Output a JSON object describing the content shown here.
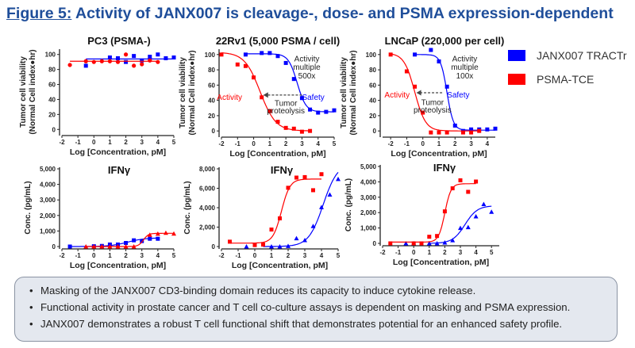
{
  "title": {
    "prefix": "Figure 5:",
    "text": " Activity of JANX007 is cleavage-, dose- and PSMA expression-dependent"
  },
  "legend": [
    {
      "label": "JANX007 TRACTr",
      "color": "#0000ff"
    },
    {
      "label": "PSMA-TCE",
      "color": "#ff0000"
    }
  ],
  "bullets": [
    "Masking of the JANX007 CD3-binding domain reduces its capacity to induce cytokine release.",
    "Functional activity in prostate cancer and T cell co-culture assays is dependent on masking and PSMA expression.",
    "JANX007 demonstrates a robust T cell functional shift that demonstrates potential for an enhanced safety profile."
  ],
  "chart_data": [
    {
      "type": "scatter",
      "title": "PC3 (PSMA-)",
      "xlabel": "Log [Concentration, pM]",
      "ylabel": [
        "Tumor cell viability",
        "(Normal Cell index●hr)"
      ],
      "xlim": [
        -2,
        5
      ],
      "ylim": [
        -5,
        105
      ],
      "xticks": [
        -2,
        -1,
        0,
        1,
        2,
        3,
        4,
        5
      ],
      "yticks": [
        0,
        20,
        40,
        60,
        80,
        100
      ],
      "ytick_labels": [
        "0",
        "20",
        "40",
        "60",
        "80",
        "100"
      ],
      "series": [
        {
          "name": "JANX007 TRACTr",
          "color": "#0000ff",
          "marker": "square",
          "x": [
            -0.5,
            1,
            1.5,
            2,
            2.5,
            3,
            3.5,
            4,
            4.5,
            5
          ],
          "y": [
            85,
            96,
            95,
            90,
            98,
            92,
            97,
            100,
            95,
            96
          ],
          "fit": {
            "type": "flat",
            "value": 94,
            "range": [
              -0.5,
              5
            ]
          }
        },
        {
          "name": "PSMA-TCE",
          "color": "#ff0000",
          "marker": "circle",
          "x": [
            -1.5,
            -0.5,
            0,
            0.5,
            1,
            1.5,
            2,
            2.5,
            3,
            3.5,
            4
          ],
          "y": [
            86,
            91,
            90,
            91,
            91,
            90,
            100,
            85,
            87,
            92,
            90
          ],
          "fit": {
            "type": "flat",
            "value": 91,
            "range": [
              -1.5,
              4
            ]
          }
        }
      ],
      "annotations": []
    },
    {
      "type": "scatter",
      "title": "22Rv1 (5,000 PSMA / cell)",
      "xlabel": "Log [Concentration, pM]",
      "ylabel": [
        "Tumor cell viability",
        "(Normal Cell index●hr)"
      ],
      "xlim": [
        -2,
        5
      ],
      "ylim": [
        -5,
        105
      ],
      "xticks": [
        -2,
        -1,
        0,
        1,
        2,
        3,
        4,
        5
      ],
      "yticks": [
        0,
        20,
        40,
        60,
        80,
        100
      ],
      "ytick_labels": [
        "0",
        "20",
        "40",
        "60",
        "80",
        "100"
      ],
      "series": [
        {
          "name": "JANX007 TRACTr",
          "color": "#0000ff",
          "marker": "square",
          "x": [
            -0.5,
            0.5,
            1,
            1.5,
            2,
            2.5,
            3,
            3.5,
            4,
            4.5,
            5
          ],
          "y": [
            100,
            102,
            102,
            98,
            89,
            68,
            43,
            28,
            24,
            25,
            27
          ],
          "fit": {
            "type": "sigmoid",
            "bottom": 25,
            "top": 101,
            "ec50": 2.7,
            "hill": 1.6,
            "range": [
              -0.5,
              5
            ]
          }
        },
        {
          "name": "PSMA-TCE",
          "color": "#ff0000",
          "marker": "square",
          "x": [
            -2,
            -1,
            -0.5,
            0,
            0.5,
            1,
            1.5,
            2,
            2.5,
            3,
            3.5
          ],
          "y": [
            100,
            87,
            85,
            70,
            44,
            26,
            12,
            4,
            3,
            -1,
            0
          ],
          "fit": {
            "type": "sigmoid",
            "bottom": 0,
            "top": 103,
            "ec50": 0.4,
            "hill": 0.9,
            "range": [
              -2,
              3.5
            ]
          }
        }
      ],
      "annotations": [
        {
          "text": "Activity",
          "color": "#ff0000",
          "x": -1.5,
          "y": 44
        },
        {
          "text": "Activity",
          "color": "#222",
          "x": 3.3,
          "y": 94
        },
        {
          "text": "multiple",
          "color": "#222",
          "x": 3.3,
          "y": 83
        },
        {
          "text": "500x",
          "color": "#222",
          "x": 3.3,
          "y": 72
        },
        {
          "text": "Safety",
          "color": "#0000ff",
          "x": 3.7,
          "y": 44
        },
        {
          "text": "Tumor",
          "color": "#222",
          "x": 2.0,
          "y": 36
        },
        {
          "text": "proteolysis",
          "color": "#222",
          "x": 2.0,
          "y": 26
        }
      ],
      "arrow": {
        "from": [
          3.0,
          47
        ],
        "to": [
          0.6,
          47
        ]
      }
    },
    {
      "type": "scatter",
      "title": "LNCaP (220,000 per cell)",
      "xlabel": "Log [Concentration, pM]",
      "ylabel": [
        "Tumor cell viability",
        "(Normal Cell index●hr)"
      ],
      "xlim": [
        -2.5,
        4.5
      ],
      "ylim": [
        -5,
        105
      ],
      "xticks": [
        -2,
        -1,
        0,
        1,
        2,
        3,
        4
      ],
      "yticks": [
        0,
        20,
        40,
        60,
        80,
        100
      ],
      "ytick_labels": [
        "0",
        "20",
        "40",
        "60",
        "80",
        "100"
      ],
      "series": [
        {
          "name": "JANX007 TRACTr",
          "color": "#0000ff",
          "marker": "square",
          "x": [
            -0.5,
            0.5,
            1,
            1.5,
            2,
            2.5,
            3,
            3.5,
            4,
            4.5
          ],
          "y": [
            100,
            106,
            91,
            58,
            7,
            0,
            2,
            2,
            2,
            3
          ],
          "fit": {
            "type": "sigmoid",
            "bottom": 1,
            "top": 100,
            "ec50": 1.5,
            "hill": 2.2,
            "range": [
              -0.5,
              4.5
            ]
          }
        },
        {
          "name": "PSMA-TCE",
          "color": "#ff0000",
          "marker": "square",
          "x": [
            -2,
            -1,
            -0.5,
            0,
            0.5,
            1,
            1.5,
            2.5,
            3,
            3.5
          ],
          "y": [
            100,
            78,
            58,
            24,
            -2,
            -2,
            -2,
            -2,
            -2,
            0
          ],
          "fit": {
            "type": "sigmoid",
            "bottom": 0,
            "top": 102,
            "ec50": -0.5,
            "hill": 1.3,
            "range": [
              -2,
              3.5
            ]
          }
        }
      ],
      "annotations": [
        {
          "text": "Activity",
          "color": "#ff0000",
          "x": -1.6,
          "y": 47
        },
        {
          "text": "Activity",
          "color": "#222",
          "x": 2.6,
          "y": 94
        },
        {
          "text": "multiple",
          "color": "#222",
          "x": 2.6,
          "y": 83
        },
        {
          "text": "100x",
          "color": "#222",
          "x": 2.6,
          "y": 72
        },
        {
          "text": "Safety",
          "color": "#0000ff",
          "x": 2.2,
          "y": 47
        },
        {
          "text": "Tumor",
          "color": "#222",
          "x": 0.6,
          "y": 37
        },
        {
          "text": "proteolysis",
          "color": "#222",
          "x": 0.6,
          "y": 27
        }
      ],
      "arrow": {
        "from": [
          1.2,
          50
        ],
        "to": [
          -0.4,
          50
        ]
      }
    },
    {
      "type": "scatter",
      "title": "IFNγ",
      "xlabel": "Log [Concentration, pM]",
      "ylabel": [
        "Conc. (pg/mL)"
      ],
      "xlim": [
        -2,
        5
      ],
      "ylim": [
        0,
        5000
      ],
      "xticks": [
        -2,
        -1,
        0,
        1,
        2,
        3,
        4,
        5
      ],
      "yticks": [
        0,
        1000,
        2000,
        3000,
        4000,
        5000
      ],
      "ytick_labels": [
        "0",
        "1,000",
        "2,000",
        "3,000",
        "4,000",
        "5,000"
      ],
      "series": [
        {
          "name": "JANX007 TRACTr",
          "color": "#0000ff",
          "marker": "square",
          "x": [
            -1.5,
            0,
            0.5,
            1,
            1.5,
            2,
            2.5,
            3,
            3.5,
            4
          ],
          "y": [
            0,
            20,
            40,
            130,
            130,
            230,
            400,
            350,
            500,
            500
          ],
          "fit": {
            "type": "sigmoid",
            "bottom": 0,
            "top": 560,
            "ec50": 2.1,
            "hill": 0.8,
            "range": [
              -1.5,
              4
            ]
          }
        },
        {
          "name": "PSMA-TCE",
          "color": "#ff0000",
          "marker": "triangle",
          "x": [
            -0.5,
            0,
            0.5,
            1,
            1.5,
            2,
            2.5,
            3.5,
            4,
            4.5,
            5
          ],
          "y": [
            0,
            0,
            0,
            0,
            0,
            0,
            0,
            750,
            820,
            880,
            830
          ],
          "fit": {
            "type": "sigmoid",
            "bottom": 0,
            "top": 850,
            "ec50": 3.1,
            "hill": 2.8,
            "range": [
              -0.5,
              5
            ]
          }
        }
      ],
      "annotations": []
    },
    {
      "type": "scatter",
      "title": "IFNγ",
      "xlabel": "Log [Concentration, pM]",
      "ylabel": [
        "Conc. (pg/mL)"
      ],
      "xlim": [
        -2,
        5
      ],
      "ylim": [
        0,
        8000
      ],
      "xticks": [
        -2,
        -1,
        0,
        1,
        2,
        3,
        4,
        5
      ],
      "yticks": [
        0,
        2000,
        4000,
        6000,
        8000
      ],
      "ytick_labels": [
        "0",
        "2,000",
        "4,000",
        "6,000",
        "8,000"
      ],
      "series": [
        {
          "name": "JANX007 TRACTr",
          "color": "#0000ff",
          "marker": "triangle",
          "x": [
            -0.5,
            1,
            1.5,
            2,
            2.5,
            3,
            3.5,
            4,
            4.5,
            5
          ],
          "y": [
            0,
            0,
            0,
            50,
            850,
            650,
            2100,
            4050,
            5350,
            6950
          ],
          "fit": {
            "type": "sigmoid",
            "bottom": 0,
            "top": 8600,
            "ec50": 4.1,
            "hill": 1.0,
            "range": [
              0.5,
              5
            ]
          }
        },
        {
          "name": "PSMA-TCE",
          "color": "#ff0000",
          "marker": "square",
          "x": [
            -1.5,
            0,
            0.5,
            1,
            1.5,
            2,
            2.5,
            3,
            3.5,
            4
          ],
          "y": [
            500,
            150,
            200,
            1750,
            2900,
            6050,
            7100,
            7150,
            5800,
            7450
          ],
          "fit": {
            "type": "sigmoid",
            "bottom": 350,
            "top": 6950,
            "ec50": 1.6,
            "hill": 1.7,
            "range": [
              -1.5,
              4
            ]
          }
        }
      ],
      "annotations": []
    },
    {
      "type": "scatter",
      "title": "IFNγ",
      "xlabel": "Log [Concentration, pM]",
      "ylabel": [
        "Conc. (pg/mL)"
      ],
      "xlim": [
        -2,
        5.5
      ],
      "ylim": [
        0,
        5000
      ],
      "xticks": [
        -2,
        -1,
        0,
        1,
        2,
        3,
        4,
        5
      ],
      "yticks": [
        0,
        1000,
        2000,
        3000,
        4000,
        5000
      ],
      "ytick_labels": [
        "0",
        "1,000",
        "2,000",
        "3,000",
        "4,000",
        "5,000"
      ],
      "series": [
        {
          "name": "JANX007 TRACTr",
          "color": "#0000ff",
          "marker": "triangle",
          "x": [
            -0.5,
            0,
            1,
            1.5,
            2,
            2.5,
            3,
            3.5,
            4,
            4.5,
            5
          ],
          "y": [
            0,
            0,
            0,
            0,
            50,
            200,
            1000,
            1050,
            1750,
            2550,
            2050
          ],
          "fit": {
            "type": "sigmoid",
            "bottom": 0,
            "top": 2450,
            "ec50": 3.3,
            "hill": 1.1,
            "range": [
              1,
              5
            ]
          }
        },
        {
          "name": "PSMA-TCE",
          "color": "#ff0000",
          "marker": "square",
          "x": [
            -1.5,
            0,
            0.5,
            1,
            1.5,
            2,
            2.5,
            3,
            3.5,
            4
          ],
          "y": [
            0,
            0,
            0,
            430,
            480,
            2080,
            3580,
            4100,
            3350,
            4020
          ],
          "fit": {
            "type": "sigmoid",
            "bottom": 80,
            "top": 3880,
            "ec50": 2.0,
            "hill": 2.2,
            "range": [
              -1.5,
              4
            ]
          }
        }
      ],
      "annotations": []
    }
  ]
}
